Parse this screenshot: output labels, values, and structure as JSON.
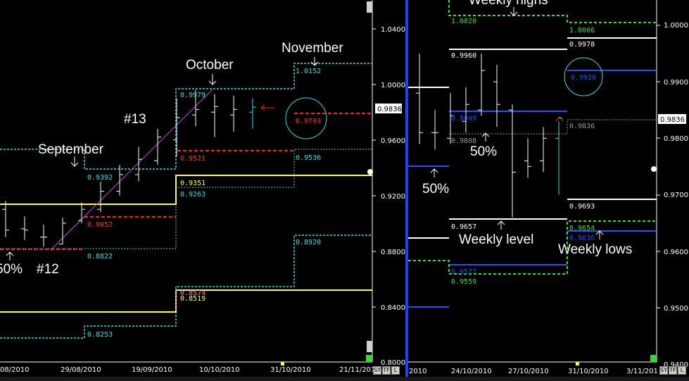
{
  "left_chart": {
    "y_axis_ticks": [
      "1.0400",
      "1.0000",
      "0.9600",
      "0.9200",
      "0.8800",
      "0.8400",
      "0.8000"
    ],
    "x_axis_ticks": [
      "08/2010",
      "29/08/2010",
      "19/09/2010",
      "10/10/2010",
      "31/10/2010",
      "21/11/201"
    ],
    "last_price_tag": "0.9836",
    "level_labels": {
      "nov_high": "1.0152",
      "oct_high": "0.9979",
      "oct_red": "0.9521",
      "oct_low": "0.9536",
      "sep_high": "0.9392",
      "oct_yellow": "0.9351",
      "oct_cyan": "0.9263",
      "sep_red": "0.9052",
      "nov_low": "0.8920",
      "sep_low": "0.8822",
      "oct_pink": "0.8574",
      "oct_yellow_low": "0.8519",
      "sep_bottom": "0.8253",
      "circle_value": "0.9793"
    },
    "annotations": {
      "september": "September",
      "october": "October",
      "november": "November",
      "wave13": "#13",
      "wave12": "#12",
      "fifty": "50%"
    },
    "buttons": [
      "SY",
      "TF",
      "L"
    ]
  },
  "right_chart": {
    "y_axis_ticks": [
      "1.0000",
      "0.9900",
      "0.9800",
      "0.9700",
      "0.9600",
      "0.9500",
      "0.9400"
    ],
    "x_axis_ticks": [
      "2010",
      "24/10/2010",
      "27/10/2010",
      "31/10/2010",
      "3/11/201"
    ],
    "last_price_tag": "0.9836",
    "level_labels": {
      "w_high_green": "1.0020",
      "w_high_green2": "1.0006",
      "white_high": "0.9960",
      "white_high2": "0.9978",
      "blue_circle": "0.9920",
      "blue_mid": "0.9849",
      "grey_mid": "0.9808",
      "grey_mid2": "0.9836",
      "white_low2": "0.9693",
      "white_low": "0.9657",
      "green_low2": "0.9654",
      "blue_low2": "0.9636",
      "blue_low": "0.9577",
      "green_low": "0.9559"
    },
    "annotations": {
      "weekly_highs": "Weekly highs",
      "weekly_level": "Weekly level",
      "weekly_lows": "Weekly lows",
      "fifty_a": "50%",
      "fifty_b": "50%"
    },
    "buttons": [
      "SY",
      "TF",
      "L"
    ]
  },
  "colors": {
    "background": "#000000",
    "cyan": "#30e0e0",
    "red": "#ff2020",
    "yellow": "#ffff30",
    "green": "#30e030",
    "blue": "#2050ff",
    "white": "#ffffff",
    "grey": "#9a9a9a",
    "magenta": "#c050e0"
  },
  "chart_data": [
    {
      "type": "line",
      "title": "",
      "x_categories": [
        "08/2010",
        "29/08/2010",
        "19/09/2010",
        "10/10/2010",
        "31/10/2010",
        "21/11/201"
      ],
      "ylim": [
        0.8,
        1.04
      ],
      "series": [
        {
          "name": "September",
          "values": [
            0.9392
          ]
        },
        {
          "name": "October",
          "values": [
            0.9979
          ]
        },
        {
          "name": "November",
          "values": [
            1.0152
          ]
        }
      ],
      "price_bars": [
        {
          "h": 0.916,
          "l": 0.89,
          "o": 0.91,
          "c": 0.895
        },
        {
          "h": 0.905,
          "l": 0.888,
          "o": 0.896,
          "c": 0.895
        },
        {
          "h": 0.899,
          "l": 0.883,
          "o": 0.89,
          "c": 0.89
        },
        {
          "h": 0.904,
          "l": 0.885,
          "o": 0.885,
          "c": 0.9
        },
        {
          "h": 0.915,
          "l": 0.9,
          "o": 0.902,
          "c": 0.91
        },
        {
          "h": 0.93,
          "l": 0.908,
          "o": 0.91,
          "c": 0.923
        },
        {
          "h": 0.942,
          "l": 0.92,
          "o": 0.923,
          "c": 0.935
        },
        {
          "h": 0.955,
          "l": 0.93,
          "o": 0.935,
          "c": 0.946
        },
        {
          "h": 0.968,
          "l": 0.942,
          "o": 0.945,
          "c": 0.962
        },
        {
          "h": 0.99,
          "l": 0.948,
          "o": 0.96,
          "c": 0.976
        },
        {
          "h": 0.996,
          "l": 0.97,
          "o": 0.978,
          "c": 0.982
        },
        {
          "h": 0.993,
          "l": 0.962,
          "o": 0.98,
          "c": 0.984
        },
        {
          "h": 0.992,
          "l": 0.966,
          "o": 0.978,
          "c": 0.982
        },
        {
          "h": 0.99,
          "l": 0.968,
          "o": 0.98,
          "c": 0.9836
        }
      ]
    },
    {
      "type": "line",
      "title": "",
      "x_categories": [
        "2010",
        "24/10/2010",
        "27/10/2010",
        "31/10/2010",
        "3/11/201"
      ],
      "ylim": [
        0.94,
        1.004
      ],
      "series": [
        {
          "name": "Weekly highs",
          "values": [
            1.002,
            1.0006
          ]
        },
        {
          "name": "Weekly lows",
          "values": [
            0.9559,
            0.9654
          ]
        }
      ],
      "price_bars": [
        {
          "h": 0.995,
          "l": 0.979,
          "o": 0.988,
          "c": 0.981
        },
        {
          "h": 0.985,
          "l": 0.978,
          "o": 0.981,
          "c": 0.981
        },
        {
          "h": 0.988,
          "l": 0.979,
          "o": 0.98,
          "c": 0.984
        },
        {
          "h": 0.989,
          "l": 0.981,
          "o": 0.983,
          "c": 0.986
        },
        {
          "h": 0.995,
          "l": 0.984,
          "o": 0.985,
          "c": 0.992
        },
        {
          "h": 0.993,
          "l": 0.982,
          "o": 0.99,
          "c": 0.986
        },
        {
          "h": 0.986,
          "l": 0.966,
          "o": 0.985,
          "c": 0.974
        },
        {
          "h": 0.98,
          "l": 0.973,
          "o": 0.976,
          "c": 0.975
        },
        {
          "h": 0.982,
          "l": 0.974,
          "o": 0.976,
          "c": 0.98
        },
        {
          "h": 0.983,
          "l": 0.97,
          "o": 0.98,
          "c": 0.9836
        }
      ]
    }
  ]
}
